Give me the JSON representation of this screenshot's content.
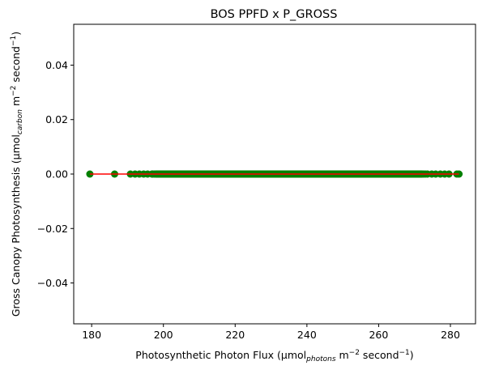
{
  "chart_data": {
    "type": "scatter",
    "title": "BOS PPFD x P_GROSS",
    "xlabel": {
      "prefix": "Photosynthetic Photon Flux (µmol",
      "sub": "photons",
      "mid": " m",
      "sup1": "−2",
      "mid2": " second",
      "sup2": "−1",
      "suffix": ")"
    },
    "ylabel": {
      "prefix": "Gross Canopy Photosynthesis (µmol",
      "sub": "carbon",
      "mid": " m",
      "sup1": "−2",
      "mid2": " second",
      "sup2": "−1",
      "suffix": ")"
    },
    "xlim": [
      175,
      287
    ],
    "ylim": [
      -0.055,
      0.055
    ],
    "xticks": [
      180,
      200,
      220,
      240,
      260,
      280
    ],
    "yticks": [
      0.04,
      0.02,
      0.0,
      -0.02,
      -0.04
    ],
    "ytick_labels": [
      "0.04",
      "0.02",
      "0.00",
      "−0.02",
      "−0.04"
    ],
    "grid": false,
    "point_color": "#008000",
    "line_color": "#ff0000",
    "x_sparse": [
      179.5,
      186.4,
      190.8,
      192.1,
      193.3,
      194.5,
      195.6,
      196.8,
      198.2,
      273.6,
      274.8,
      275.9,
      277.2,
      278.4,
      279.6,
      281.8,
      282.4
    ],
    "x_dense_range": [
      197,
      273
    ],
    "y_value": 0.0
  }
}
